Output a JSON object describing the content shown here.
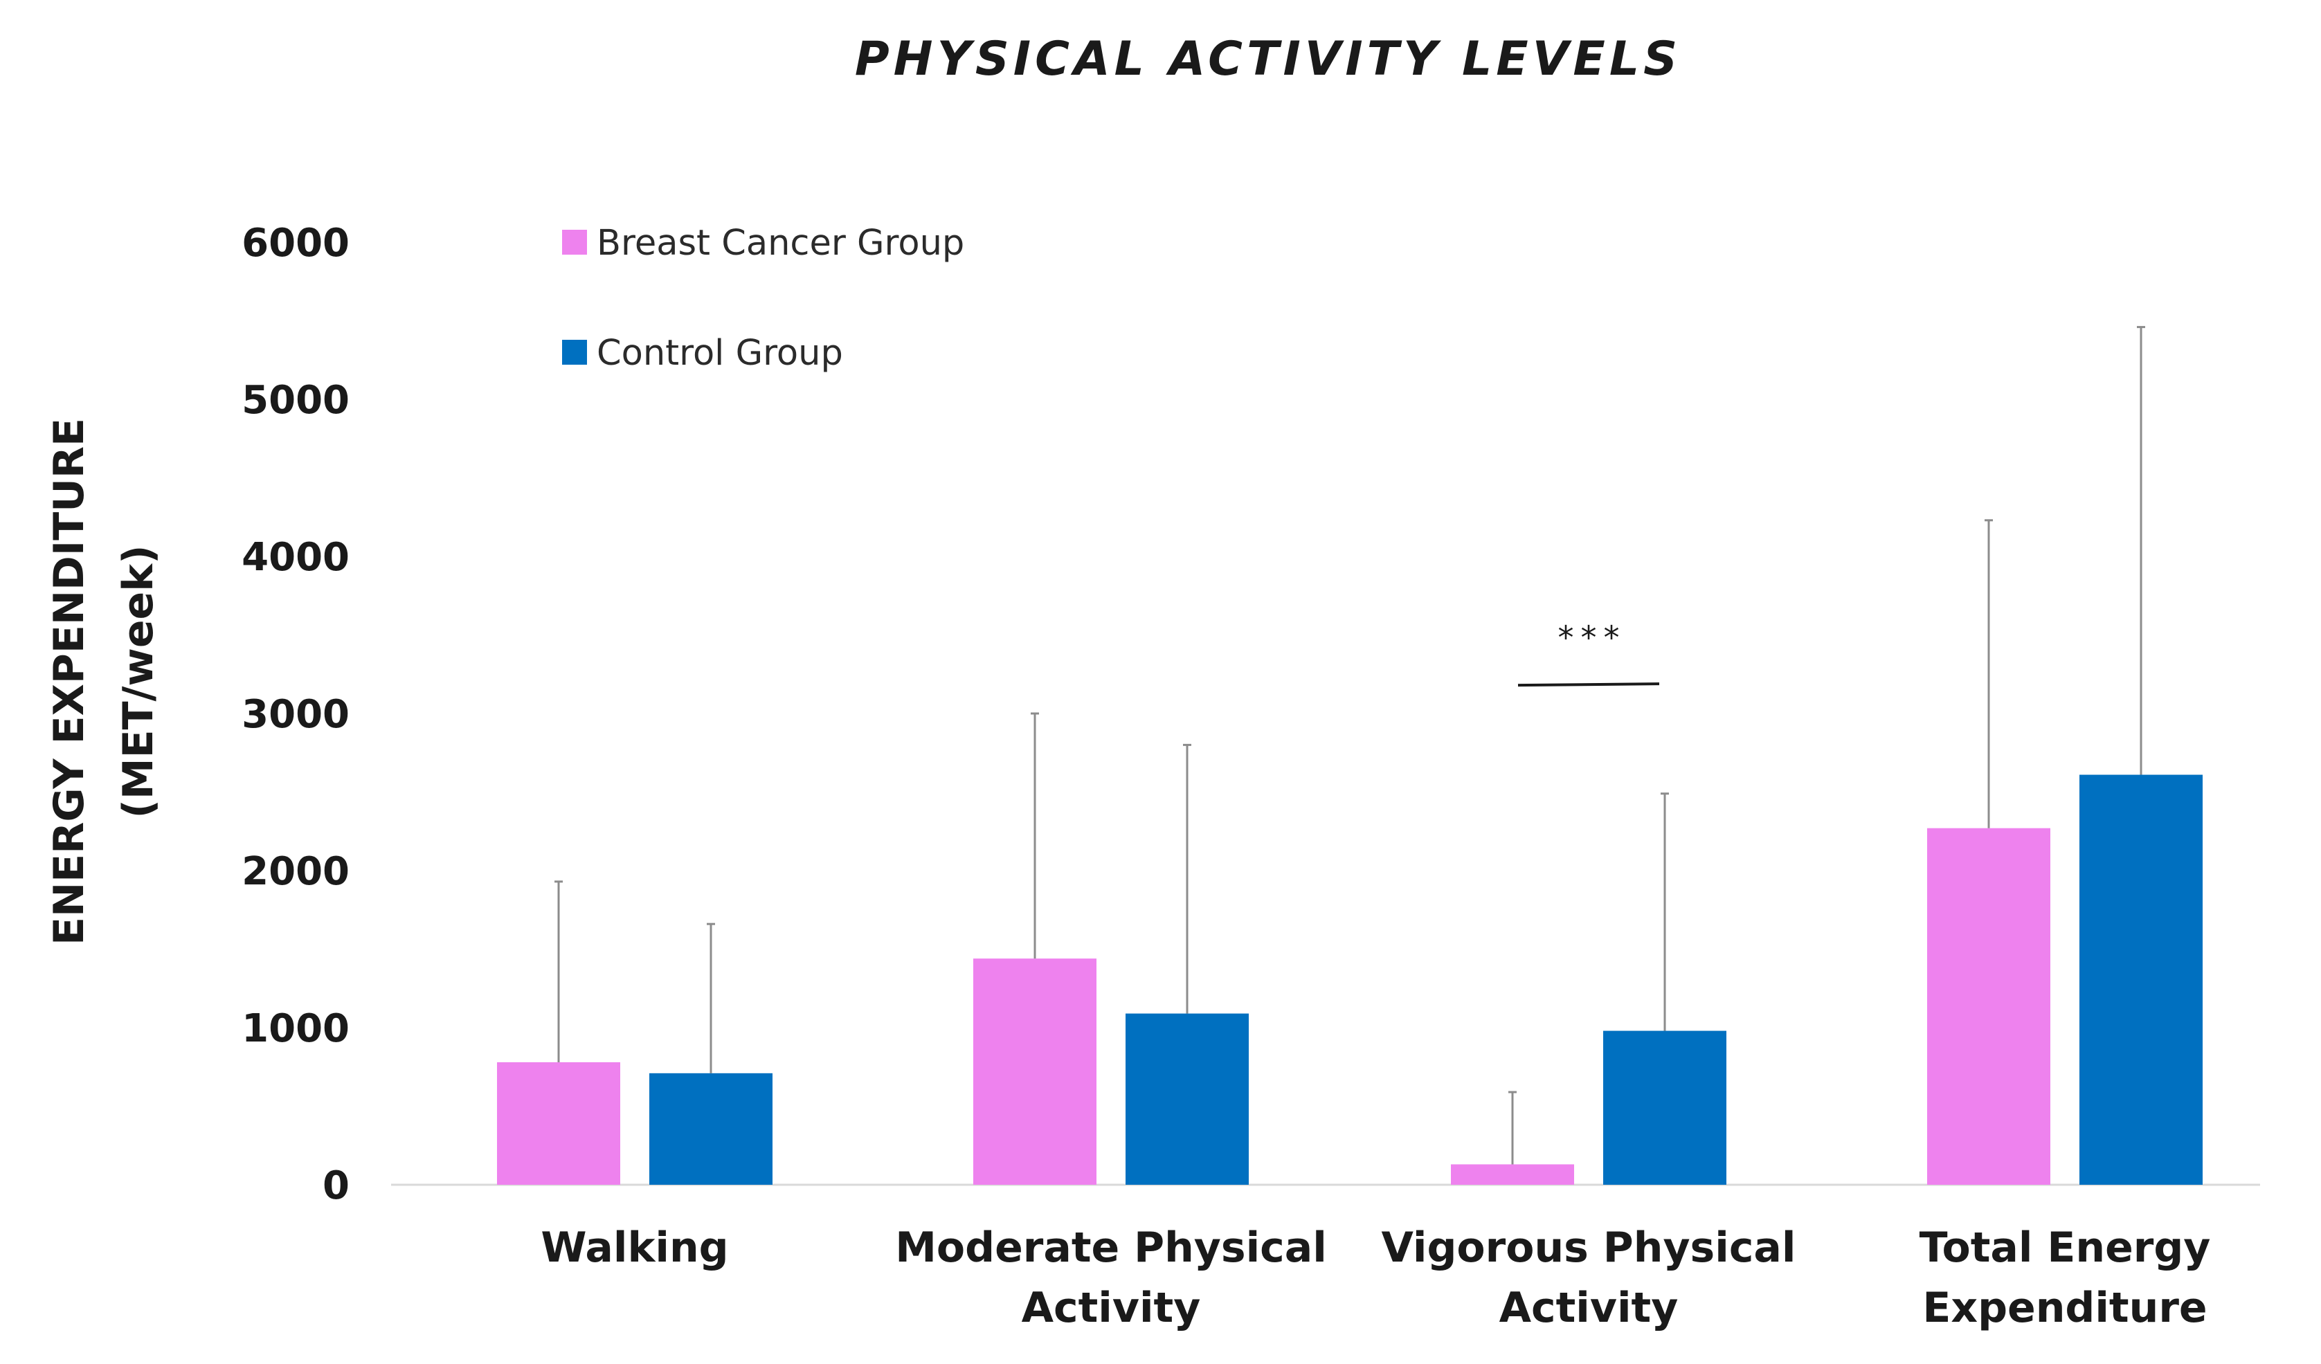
{
  "chart_data": {
    "type": "bar",
    "title": "PHYSICAL ACTIVITY LEVELS",
    "ylabel_line1": "ENERGY EXPENDITURE",
    "ylabel_line2": "(MET/week)",
    "xlabel": "",
    "ylim": [
      0,
      6000
    ],
    "yticks": [
      0,
      1000,
      2000,
      3000,
      4000,
      5000,
      6000
    ],
    "grid": false,
    "legend_position": "top-left",
    "categories": [
      [
        "Walking"
      ],
      [
        "Moderate Physical",
        "Activity"
      ],
      [
        "Vigorous Physical",
        "Activity"
      ],
      [
        "Total Energy",
        "Expenditure"
      ]
    ],
    "series": [
      {
        "name": "Breast Cancer Group",
        "color": "#EE82EE",
        "values": [
          780,
          1440,
          130,
          2270
        ],
        "error_upper": [
          1930,
          3000,
          590,
          4230
        ]
      },
      {
        "name": "Control Group",
        "color": "#0070C0",
        "values": [
          710,
          1090,
          980,
          2610
        ],
        "error_upper": [
          1660,
          2800,
          2490,
          5460
        ]
      }
    ],
    "annotations": [
      {
        "text": "***",
        "category_index": 2,
        "bracket_y": 3180,
        "text_y": 3500
      }
    ]
  }
}
